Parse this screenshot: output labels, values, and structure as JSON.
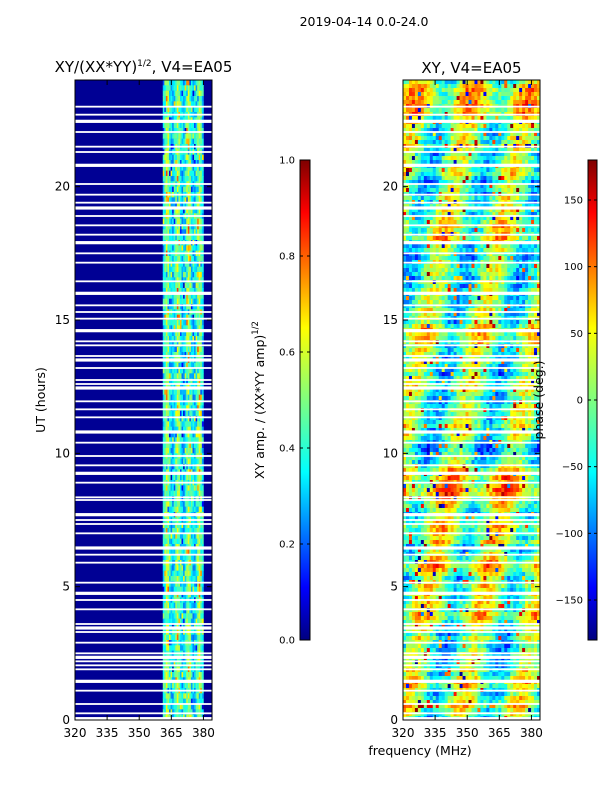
{
  "figure_title": "2019-04-14 0.0-24.0",
  "chart_data": [
    {
      "type": "heatmap",
      "title_main": "XY/(XX*YY)",
      "title_exponent": "1/2",
      "title_suffix": ", V4=EA05",
      "xlabel": "frequency (MHz)",
      "ylabel": "UT (hours)",
      "xlim": [
        320,
        384
      ],
      "ylim": [
        0,
        24
      ],
      "xticks": [
        320,
        335,
        350,
        365,
        380
      ],
      "yticks": [
        0,
        5,
        10,
        15,
        20
      ],
      "colorbar": {
        "label_main": "XY amp. / (XX*YY amp)",
        "label_exponent": "1/2",
        "range": [
          0.0,
          1.0
        ],
        "ticks": [
          "0.0",
          "0.2",
          "0.4",
          "0.6",
          "0.8",
          "1.0"
        ],
        "tick_values": [
          0.0,
          0.2,
          0.4,
          0.6,
          0.8,
          1.0
        ],
        "colormap": "jet"
      },
      "active_band_mhz": [
        361,
        380
      ],
      "band_peaks_mhz": [
        363,
        368,
        373,
        378
      ],
      "quiet_value": 0.0
    },
    {
      "type": "heatmap",
      "title": "XY, V4=EA05",
      "xlabel": "frequency (MHz)",
      "ylabel": "",
      "xlim": [
        320,
        384
      ],
      "ylim": [
        0,
        24
      ],
      "xticks": [
        320,
        335,
        350,
        365,
        380
      ],
      "yticks": [
        0,
        5,
        10,
        15,
        20
      ],
      "colorbar": {
        "label": "phase (deg.)",
        "range": [
          -180,
          180
        ],
        "ticks": [
          "−150",
          "−100",
          "−50",
          "0",
          "50",
          "100",
          "150"
        ],
        "tick_values": [
          -150,
          -100,
          -50,
          0,
          50,
          100,
          150
        ],
        "colormap": "jet"
      }
    }
  ],
  "flagged_hours": [
    0.05,
    0.25,
    0.6,
    1.1,
    1.45,
    1.9,
    2.05,
    2.2,
    2.35,
    2.5,
    2.9,
    3.3,
    3.45,
    3.6,
    4.15,
    4.5,
    4.75,
    5.15,
    5.9,
    6.2,
    6.45,
    7.0,
    7.35,
    7.5,
    7.7,
    8.25,
    8.35,
    8.9,
    9.25,
    9.55,
    9.9,
    10.4,
    10.8,
    11.35,
    11.65,
    11.95,
    12.45,
    12.6,
    12.75,
    13.2,
    13.5,
    13.65,
    14.05,
    14.2,
    14.6,
    15.05,
    15.3,
    15.55,
    16.0,
    16.45,
    17.15,
    17.5,
    17.9,
    18.2,
    18.55,
    18.9,
    19.2,
    19.4,
    19.7,
    20.1,
    20.8,
    21.3,
    21.5,
    22.05,
    22.45,
    22.7,
    23.0
  ]
}
